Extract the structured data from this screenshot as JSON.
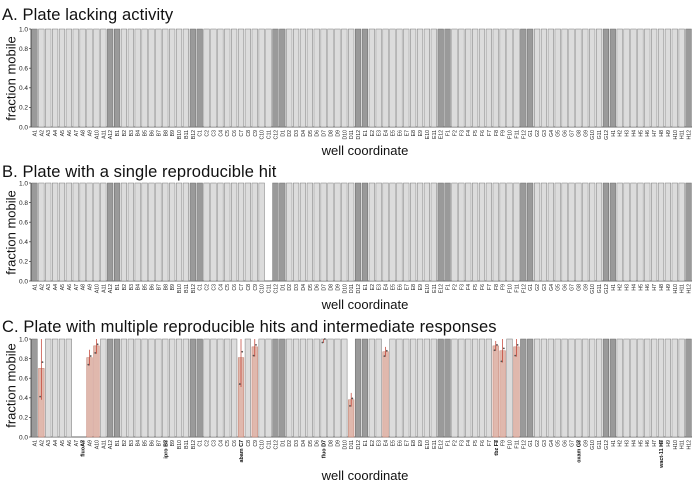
{
  "wells": [
    "A1",
    "A2",
    "A3",
    "A4",
    "A5",
    "A6",
    "A7",
    "A8",
    "A9",
    "A10",
    "A11",
    "A12",
    "B1",
    "B2",
    "B3",
    "B4",
    "B5",
    "B6",
    "B7",
    "B8",
    "B9",
    "B10",
    "B11",
    "B12",
    "C1",
    "C2",
    "C3",
    "C4",
    "C5",
    "C6",
    "C7",
    "C8",
    "C9",
    "C10",
    "C11",
    "C12",
    "D1",
    "D2",
    "D3",
    "D4",
    "D5",
    "D6",
    "D7",
    "D8",
    "D9",
    "D10",
    "D11",
    "D12",
    "E1",
    "E2",
    "E3",
    "E4",
    "E5",
    "E6",
    "E7",
    "E8",
    "E9",
    "E10",
    "E11",
    "E12",
    "F1",
    "F2",
    "F3",
    "F4",
    "F5",
    "F6",
    "F7",
    "F8",
    "F9",
    "F10",
    "F11",
    "F12",
    "G1",
    "G2",
    "G3",
    "G4",
    "G5",
    "G6",
    "G7",
    "G8",
    "G9",
    "G10",
    "G11",
    "G12",
    "H1",
    "H2",
    "H3",
    "H4",
    "H5",
    "H6",
    "H7",
    "H8",
    "H9",
    "H10",
    "H11",
    "H12"
  ],
  "chart_data": [
    {
      "type": "bar",
      "title": "A. Plate lacking activity",
      "xlabel": "well coordinate",
      "ylabel": "fraction mobile",
      "ylim": [
        0,
        1
      ],
      "yticks": [
        "0.0",
        "0.2",
        "0.4",
        "0.6",
        "0.8",
        "1.0"
      ],
      "control_wells": [
        11,
        12
      ],
      "values": [
        1,
        1,
        1,
        1,
        1,
        1,
        1,
        1,
        1,
        1,
        1,
        1,
        1,
        1,
        1,
        1,
        1,
        1,
        1,
        1,
        1,
        1,
        1,
        1,
        1,
        1,
        1,
        1,
        1,
        1,
        1,
        1,
        1,
        1,
        1,
        1,
        1,
        1,
        1,
        1,
        1,
        1,
        1,
        1,
        1,
        1,
        1,
        1,
        1,
        1,
        1,
        1,
        1,
        1,
        1,
        1,
        1,
        1,
        1,
        1,
        1,
        1,
        1,
        1,
        1,
        1,
        1,
        1,
        1,
        1,
        1,
        1,
        1,
        1,
        1,
        1,
        1,
        1,
        1,
        1,
        1,
        1,
        1,
        1,
        1,
        1,
        1,
        1,
        1,
        1,
        1,
        1,
        1,
        1,
        1,
        1
      ],
      "compound_labels": []
    },
    {
      "type": "bar",
      "title": "B. Plate with a single reproducible hit",
      "xlabel": "well coordinate",
      "ylabel": "fraction mobile",
      "ylim": [
        0,
        1
      ],
      "yticks": [
        "0.0",
        "0.2",
        "0.4",
        "0.6",
        "0.8",
        "1.0"
      ],
      "control_wells": [
        11,
        12
      ],
      "values": [
        1,
        1,
        1,
        1,
        1,
        1,
        1,
        1,
        1,
        1,
        1,
        1,
        1,
        1,
        1,
        1,
        1,
        1,
        1,
        1,
        1,
        1,
        1,
        1,
        1,
        1,
        1,
        1,
        1,
        1,
        1,
        1,
        1,
        1,
        0,
        1,
        1,
        1,
        1,
        1,
        1,
        1,
        1,
        1,
        1,
        1,
        1,
        1,
        1,
        1,
        1,
        1,
        1,
        1,
        1,
        1,
        1,
        1,
        1,
        1,
        1,
        1,
        1,
        1,
        1,
        1,
        1,
        1,
        1,
        1,
        1,
        1,
        1,
        1,
        1,
        1,
        1,
        1,
        1,
        1,
        1,
        1,
        1,
        1,
        1,
        1,
        1,
        1,
        1,
        1,
        1,
        1,
        1,
        1,
        1,
        1
      ],
      "compound_labels": []
    },
    {
      "type": "bar",
      "title": "C. Plate with multiple reproducible hits and intermediate responses",
      "xlabel": "well coordinate",
      "ylabel": "fraction mobile",
      "ylim": [
        0,
        1
      ],
      "yticks": [
        "0.0",
        "0.2",
        "0.4",
        "0.6",
        "0.8",
        "1.0"
      ],
      "control_wells": [
        11,
        12
      ],
      "values": [
        1,
        0.7,
        1,
        1,
        1,
        1,
        0,
        0,
        0.81,
        0.93,
        1,
        1,
        1,
        1,
        1,
        1,
        1,
        1,
        1,
        1,
        1,
        1,
        1,
        1,
        1,
        1,
        1,
        1,
        1,
        1,
        0.81,
        1,
        0.92,
        1,
        1,
        1,
        1,
        1,
        1,
        1,
        1,
        1,
        1,
        1,
        1,
        1,
        0.38,
        1,
        1,
        1,
        1,
        0.87,
        1,
        1,
        1,
        1,
        1,
        1,
        1,
        1,
        1,
        1,
        1,
        1,
        1,
        1,
        1,
        0.93,
        0.88,
        1,
        0.92,
        1,
        1,
        1,
        1,
        1,
        1,
        1,
        1,
        1,
        1,
        1,
        1,
        1,
        1,
        1,
        1,
        1,
        1,
        1,
        1,
        1,
        1,
        1,
        1,
        1
      ],
      "errors": {
        "1": 0.32,
        "8": 0.08,
        "9": 0.08,
        "30": 0.3,
        "32": 0.1,
        "42": 0.04,
        "46": 0.07,
        "51": 0.05,
        "67": 0.05,
        "68": 0.12,
        "70": 0.1
      },
      "compound_labels": [
        {
          "index": 7,
          "text": "fluoA7"
        },
        {
          "index": 19,
          "text": "ipro B7"
        },
        {
          "index": 30,
          "text": "abam C7"
        },
        {
          "index": 42,
          "text": "fluo D7"
        },
        {
          "index": 67,
          "text": "tbz F7"
        },
        {
          "index": 79,
          "text": "oxam G7"
        },
        {
          "index": 91,
          "text": "wact-11 H7"
        }
      ]
    }
  ]
}
